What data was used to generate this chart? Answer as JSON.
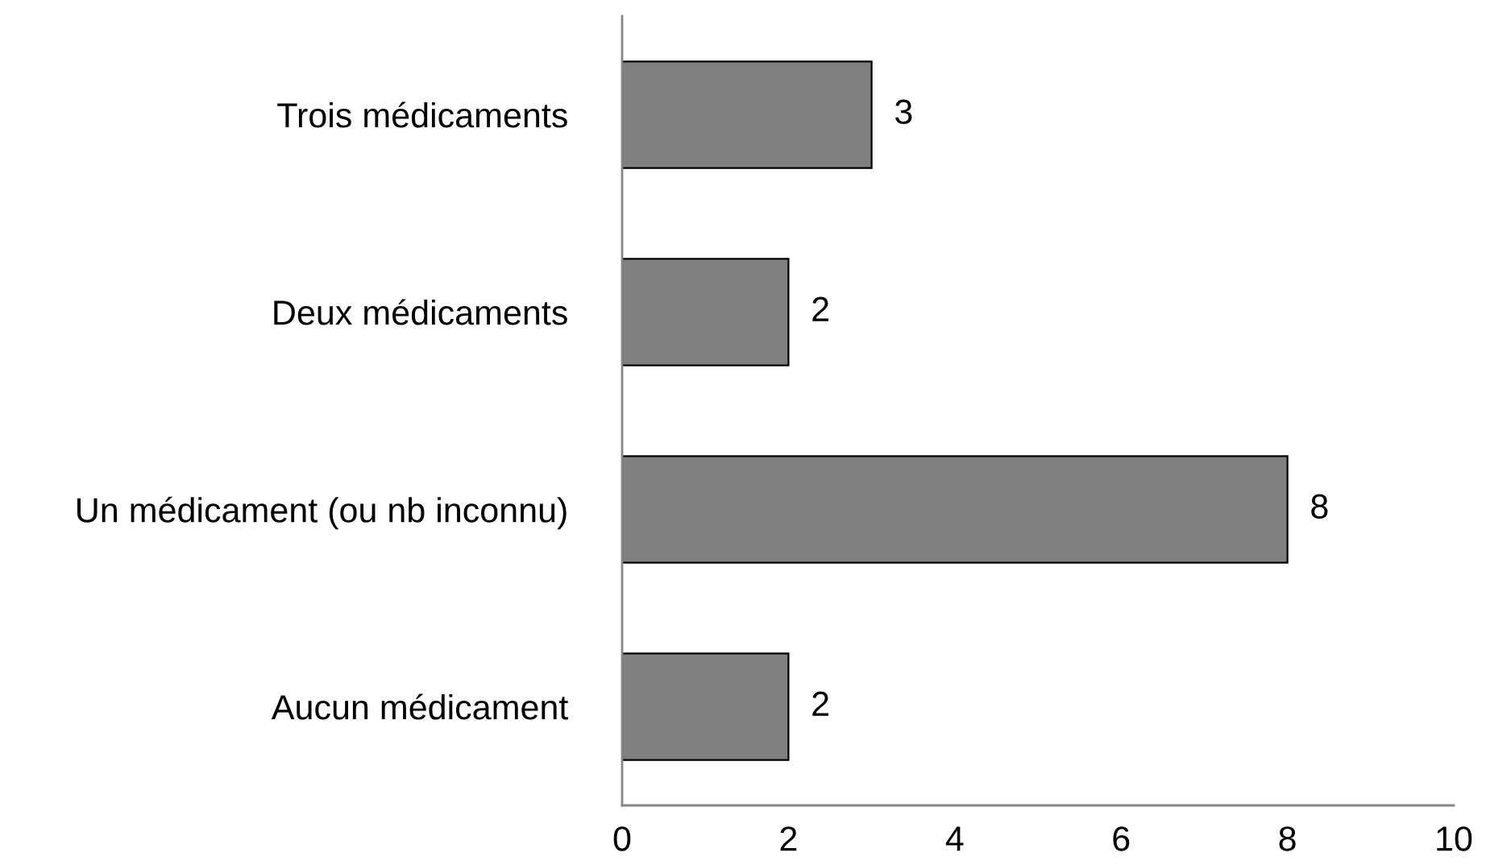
{
  "chart_data": {
    "type": "bar",
    "orientation": "horizontal",
    "categories": [
      "Trois médicaments",
      "Deux médicaments",
      "Un médicament (ou nb inconnu)",
      "Aucun médicament"
    ],
    "values": [
      3,
      2,
      8,
      2
    ],
    "color": "#808080",
    "xlim": [
      0,
      10
    ],
    "xticks": [
      0,
      2,
      4,
      6,
      8,
      10
    ],
    "data_labels": true,
    "grid": false,
    "legend": false
  }
}
